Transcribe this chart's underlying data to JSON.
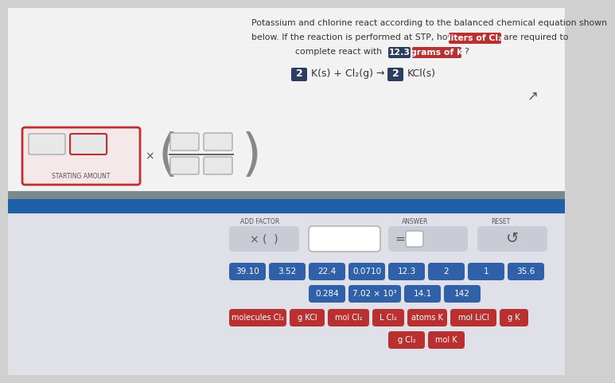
{
  "bg_color": "#d0d0d0",
  "top_panel_bg": "#f2f2f2",
  "bottom_stripe_bg": "#7a8a8a",
  "bottom_blue_bg": "#2060a8",
  "bottom_content_bg": "#e0e0e8",
  "title_text_line1": "Potassium and chlorine react according to the balanced chemical equation shown",
  "title_text_line2": "below. If the reaction is performed at STP, how many",
  "title_highlight1": "liters of Cl₂",
  "title_text_line2b": "are required to",
  "title_text_line3a": "complete react with",
  "title_highlight2_num": "12.3",
  "title_highlight2_unit": "grams of K",
  "title_text_line3b": "?",
  "equation_coeff1": "2",
  "equation_mid": "K(s) + Cl₂(g) →",
  "equation_coeff2": "2",
  "equation_product": "KCl(s)",
  "starting_amount_label": "STARTING AMOUNT",
  "add_factor_label": "ADD FACTOR",
  "answer_label": "ANSWER",
  "reset_label": "RESET",
  "number_buttons_row1": [
    "39.10",
    "3.52",
    "22.4",
    "0.0710",
    "12.3",
    "2",
    "1",
    "35.6"
  ],
  "number_buttons_row2": [
    "0.284",
    "7.02 × 10³",
    "14.1",
    "142"
  ],
  "unit_buttons_row1": [
    "molecules Cl₂",
    "g KCl",
    "mol Cl₂",
    "L Cl₂",
    "atoms K",
    "mol LiCl",
    "g K"
  ],
  "unit_buttons_row2": [
    "g Cl₂",
    "mol K"
  ],
  "highlight_red_bg": "#b83030",
  "highlight_red_text": "#ffffff",
  "highlight_dark_bg": "#2c3e60",
  "highlight_dark_text": "#ffffff",
  "button_blue_bg": "#3060a8",
  "button_blue_text": "#ffffff",
  "button_red_bg": "#b83030",
  "button_red_text": "#ffffff",
  "button_gray_bg": "#c8ccd4",
  "button_gray_text": "#333333",
  "text_color": "#333333",
  "title_fontsize": 7.8,
  "eq_fontsize": 9.0
}
